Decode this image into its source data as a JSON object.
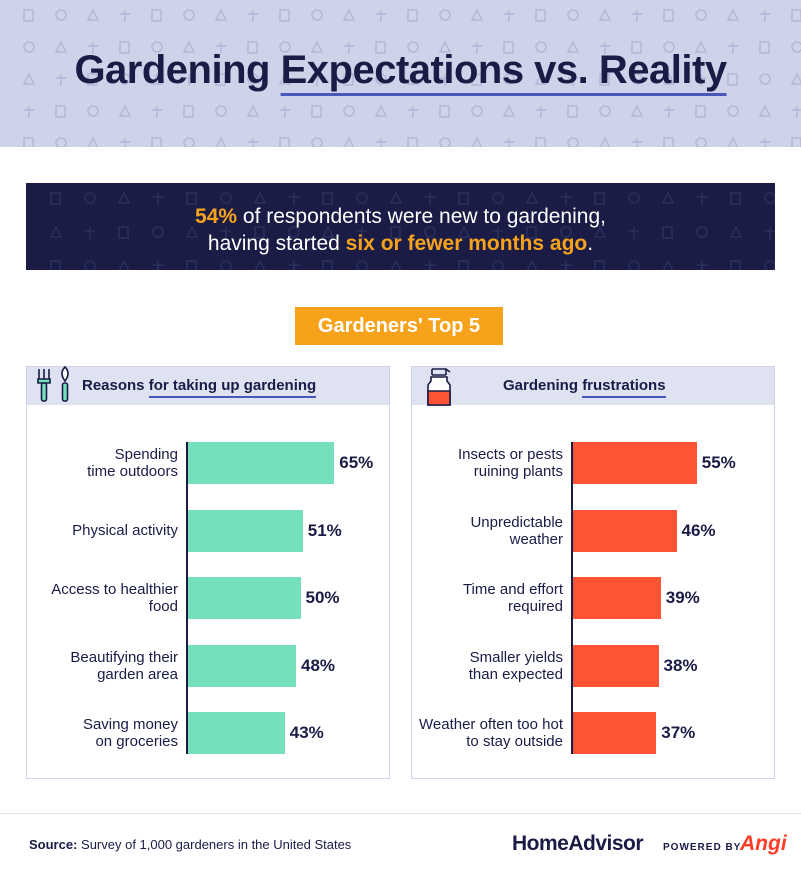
{
  "title": {
    "part1": "Gardening",
    "part2": "Expectations vs. Reality"
  },
  "banner": {
    "pct": "54%",
    "text1": " of respondents were new to gardening,",
    "text2": "having started ",
    "hl2": "six or fewer months ago",
    "end": "."
  },
  "top5_label": "Gardeners' Top 5",
  "icons": {
    "reasons": "garden-tools-icon",
    "frustrations": "spray-bottle-icon"
  },
  "colors": {
    "navy": "#1a1c46",
    "accent": "#f6a21a",
    "green": "#76e0bd",
    "red": "#ff5434",
    "lavender": "#cfd3ea"
  },
  "chart_data": [
    {
      "type": "bar",
      "orientation": "horizontal",
      "title_plain": "Reasons ",
      "title_underlined": "for taking up gardening",
      "categories": [
        [
          "Spending",
          "time outdoors"
        ],
        [
          "Physical activity"
        ],
        [
          "Access to healthier",
          "food"
        ],
        [
          "Beautifying their",
          "garden area"
        ],
        [
          "Saving money",
          "on groceries"
        ]
      ],
      "values": [
        65,
        51,
        50,
        48,
        43
      ],
      "labels": [
        "65%",
        "51%",
        "50%",
        "48%",
        "43%"
      ],
      "color": "#76e0bd",
      "xlim": [
        0,
        100
      ]
    },
    {
      "type": "bar",
      "orientation": "horizontal",
      "title_plain": "Gardening ",
      "title_underlined": "frustrations",
      "categories": [
        [
          "Insects or pests",
          "ruining plants"
        ],
        [
          "Unpredictable",
          "weather"
        ],
        [
          "Time and effort",
          "required"
        ],
        [
          "Smaller yields",
          "than expected"
        ],
        [
          "Weather often too hot",
          "to stay outside"
        ]
      ],
      "values": [
        55,
        46,
        39,
        38,
        37
      ],
      "labels": [
        "55%",
        "46%",
        "39%",
        "38%",
        "37%"
      ],
      "color": "#ff5434",
      "xlim": [
        0,
        100
      ]
    }
  ],
  "footer": {
    "source_label": "Source:",
    "source_text": " Survey of 1,000 gardeners in the United States",
    "brand": "HomeAdvisor",
    "powered": "POWERED BY",
    "angi": "Angi"
  }
}
